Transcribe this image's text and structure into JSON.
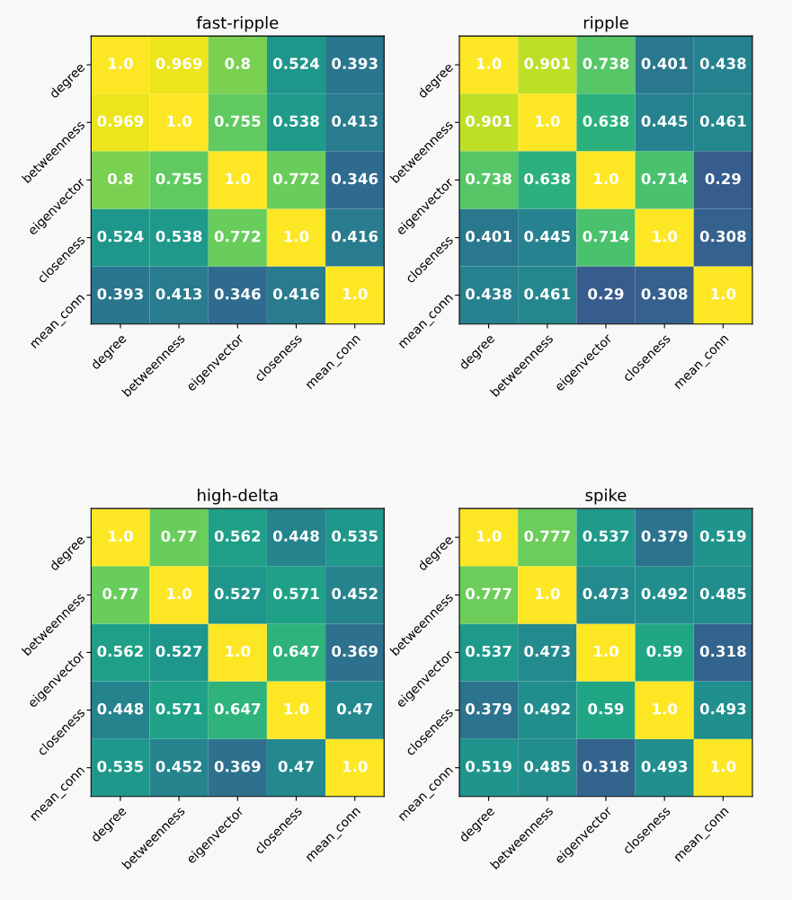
{
  "chart_data": [
    {
      "type": "heatmap",
      "title": "fast-ripple",
      "categories": [
        "degree",
        "betweenness",
        "eigenvector",
        "closeness",
        "mean_conn"
      ],
      "y_categories": [
        "degree",
        "betweenness",
        "eigenvector",
        "closeness",
        "mean_conn"
      ],
      "cell_labels": [
        [
          "1.0",
          "0.969",
          "0.8",
          "0.524",
          "0.393"
        ],
        [
          "0.969",
          "1.0",
          "0.755",
          "0.538",
          "0.413"
        ],
        [
          "0.8",
          "0.755",
          "1.0",
          "0.772",
          "0.346"
        ],
        [
          "0.524",
          "0.538",
          "0.772",
          "1.0",
          "0.416"
        ],
        [
          "0.393",
          "0.413",
          "0.346",
          "0.416",
          "1.0"
        ]
      ],
      "cells": [
        [
          1.0,
          0.969,
          0.8,
          0.524,
          0.393
        ],
        [
          0.969,
          1.0,
          0.755,
          0.538,
          0.413
        ],
        [
          0.8,
          0.755,
          1.0,
          0.772,
          0.346
        ],
        [
          0.524,
          0.538,
          0.772,
          1.0,
          0.416
        ],
        [
          0.393,
          0.413,
          0.346,
          0.416,
          1.0
        ]
      ]
    },
    {
      "type": "heatmap",
      "title": "ripple",
      "categories": [
        "degree",
        "betweenness",
        "eigenvector",
        "closeness",
        "mean_conn"
      ],
      "y_categories": [
        "degree",
        "betweenness",
        "eigenvector",
        "closeness",
        "mean_conn"
      ],
      "cell_labels": [
        [
          "1.0",
          "0.901",
          "0.738",
          "0.401",
          "0.438"
        ],
        [
          "0.901",
          "1.0",
          "0.638",
          "0.445",
          "0.461"
        ],
        [
          "0.738",
          "0.638",
          "1.0",
          "0.714",
          "0.29"
        ],
        [
          "0.401",
          "0.445",
          "0.714",
          "1.0",
          "0.308"
        ],
        [
          "0.438",
          "0.461",
          "0.29",
          "0.308",
          "1.0"
        ]
      ],
      "cells": [
        [
          1.0,
          0.901,
          0.738,
          0.401,
          0.438
        ],
        [
          0.901,
          1.0,
          0.638,
          0.445,
          0.461
        ],
        [
          0.738,
          0.638,
          1.0,
          0.714,
          0.29
        ],
        [
          0.401,
          0.445,
          0.714,
          1.0,
          0.308
        ],
        [
          0.438,
          0.461,
          0.29,
          0.308,
          1.0
        ]
      ]
    },
    {
      "type": "heatmap",
      "title": "high-delta",
      "categories": [
        "degree",
        "betweenness",
        "eigenvector",
        "closeness",
        "mean_conn"
      ],
      "y_categories": [
        "degree",
        "betweenness",
        "eigenvector",
        "closeness",
        "mean_conn"
      ],
      "cell_labels": [
        [
          "1.0",
          "0.77",
          "0.562",
          "0.448",
          "0.535"
        ],
        [
          "0.77",
          "1.0",
          "0.527",
          "0.571",
          "0.452"
        ],
        [
          "0.562",
          "0.527",
          "1.0",
          "0.647",
          "0.369"
        ],
        [
          "0.448",
          "0.571",
          "0.647",
          "1.0",
          "0.47"
        ],
        [
          "0.535",
          "0.452",
          "0.369",
          "0.47",
          "1.0"
        ]
      ],
      "cells": [
        [
          1.0,
          0.77,
          0.562,
          0.448,
          0.535
        ],
        [
          0.77,
          1.0,
          0.527,
          0.571,
          0.452
        ],
        [
          0.562,
          0.527,
          1.0,
          0.647,
          0.369
        ],
        [
          0.448,
          0.571,
          0.647,
          1.0,
          0.47
        ],
        [
          0.535,
          0.452,
          0.369,
          0.47,
          1.0
        ]
      ]
    },
    {
      "type": "heatmap",
      "title": "spike",
      "categories": [
        "degree",
        "betweenness",
        "eigenvector",
        "closeness",
        "mean_conn"
      ],
      "y_categories": [
        "degree",
        "betweenness",
        "eigenvector",
        "closeness",
        "mean_conn"
      ],
      "cell_labels": [
        [
          "1.0",
          "0.777",
          "0.537",
          "0.379",
          "0.519"
        ],
        [
          "0.777",
          "1.0",
          "0.473",
          "0.492",
          "0.485"
        ],
        [
          "0.537",
          "0.473",
          "1.0",
          "0.59",
          "0.318"
        ],
        [
          "0.379",
          "0.492",
          "0.59",
          "1.0",
          "0.493"
        ],
        [
          "0.519",
          "0.485",
          "0.318",
          "0.493",
          "1.0"
        ]
      ],
      "cells": [
        [
          1.0,
          0.777,
          0.537,
          0.379,
          0.519
        ],
        [
          0.777,
          1.0,
          0.473,
          0.492,
          0.485
        ],
        [
          0.537,
          0.473,
          1.0,
          0.59,
          0.318
        ],
        [
          0.379,
          0.492,
          0.59,
          1.0,
          0.493
        ],
        [
          0.519,
          0.485,
          0.318,
          0.493,
          1.0
        ]
      ]
    }
  ]
}
